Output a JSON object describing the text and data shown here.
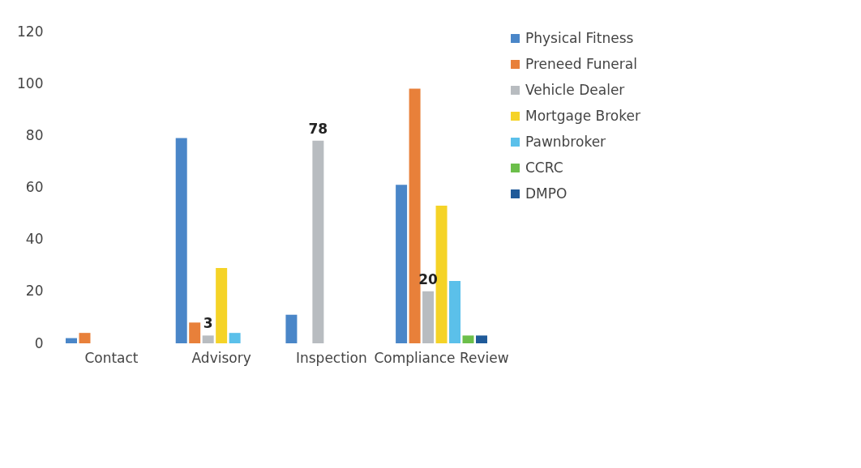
{
  "chart_data": {
    "type": "bar",
    "categories": [
      "Contact",
      "Advisory",
      "Inspection",
      "Compliance Review"
    ],
    "series": [
      {
        "name": "Physical Fitness",
        "color": "#4a86c8",
        "values": [
          2,
          79,
          11,
          61
        ]
      },
      {
        "name": "Preneed Funeral",
        "color": "#e8803a",
        "values": [
          4,
          8,
          null,
          98
        ]
      },
      {
        "name": "Vehicle Dealer",
        "color": "#b8bcc0",
        "values": [
          null,
          3,
          78,
          20
        ],
        "value_labels": [
          null,
          "3",
          "78",
          "20"
        ]
      },
      {
        "name": "Mortgage Broker",
        "color": "#f5d327",
        "values": [
          null,
          29,
          null,
          53
        ]
      },
      {
        "name": "Pawnbroker",
        "color": "#5bc0ea",
        "values": [
          null,
          4,
          null,
          24
        ]
      },
      {
        "name": "CCRC",
        "color": "#6cbf4a",
        "values": [
          null,
          null,
          null,
          3
        ]
      },
      {
        "name": "DMPO",
        "color": "#1f5a99",
        "values": [
          null,
          null,
          null,
          3
        ]
      }
    ],
    "ylim": [
      0,
      120
    ],
    "yticks": [
      0,
      20,
      40,
      60,
      80,
      100,
      120
    ],
    "grid": false,
    "legend": "right"
  }
}
